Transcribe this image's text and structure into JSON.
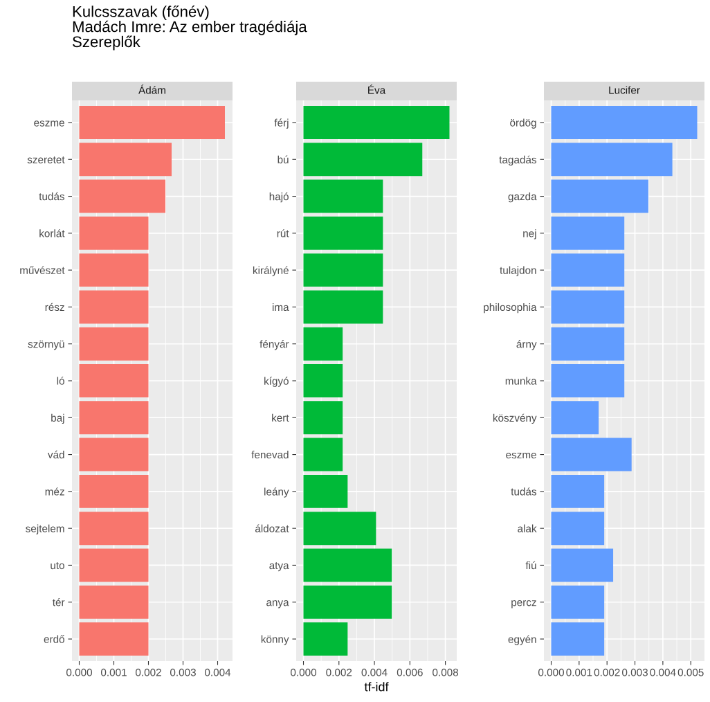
{
  "chart_data": [
    {
      "type": "bar",
      "orientation": "horizontal",
      "title": "Ádám",
      "annotations": [
        "Kulcsszavak (főnév)\nMadách Imre: Az ember tragédiája\nSzereplők"
      ],
      "categories": [
        "eszme",
        "szeretet",
        "tudás",
        "korlát",
        "művészet",
        "rész",
        "szörnyü",
        "ló",
        "baj",
        "vád",
        "méz",
        "sejtelem",
        "uto",
        "tér",
        "erdő"
      ],
      "values": [
        0.00421,
        0.00267,
        0.00249,
        0.002,
        0.002,
        0.002,
        0.002,
        0.002,
        0.002,
        0.002,
        0.002,
        0.002,
        0.002,
        0.002,
        0.002
      ],
      "color": "#f8766d",
      "xlim": [
        -0.00021,
        0.00443
      ],
      "xticks": [
        "0.000",
        0.001,
        0.002,
        0.003,
        0.004
      ],
      "grid": true
    },
    {
      "type": "bar",
      "orientation": "horizontal",
      "title": "Éva",
      "xlabel": "tf-idf",
      "categories": [
        "férj",
        "bú",
        "hajó",
        "rút",
        "királyné",
        "ima",
        "fényár",
        "kígyó",
        "kert",
        "fenevad",
        "leány",
        "áldozat",
        "atya",
        "anya",
        "könny"
      ],
      "values": [
        0.00823,
        0.0067,
        0.00448,
        0.00448,
        0.00448,
        0.00448,
        0.00221,
        0.00221,
        0.00221,
        0.00221,
        0.00249,
        0.00409,
        0.00498,
        0.00498,
        0.00249
      ],
      "color": "#00ba38",
      "xlim": [
        -0.00041,
        0.00864
      ],
      "xticks": [
        "0.000",
        0.002,
        0.004,
        0.006,
        0.008
      ],
      "grid": true
    },
    {
      "type": "bar",
      "orientation": "horizontal",
      "title": "Lucifer",
      "categories": [
        "ördög",
        "tagadás",
        "gazda",
        "nej",
        "tulajdon",
        "philosophia",
        "árny",
        "munka",
        "köszvény",
        "eszme",
        "tudás",
        "alak",
        "fiú",
        "percz",
        "egyén"
      ],
      "values": [
        0.00523,
        0.00434,
        0.00348,
        0.00262,
        0.00262,
        0.00262,
        0.00262,
        0.00262,
        0.0017,
        0.00288,
        0.0019,
        0.0019,
        0.00222,
        0.0019,
        0.0019
      ],
      "color": "#619cff",
      "xlim": [
        -0.00026,
        0.00549
      ],
      "xticks": [
        "0.000",
        0.001,
        0.002,
        0.003,
        0.004,
        0.005
      ],
      "grid": true
    }
  ]
}
